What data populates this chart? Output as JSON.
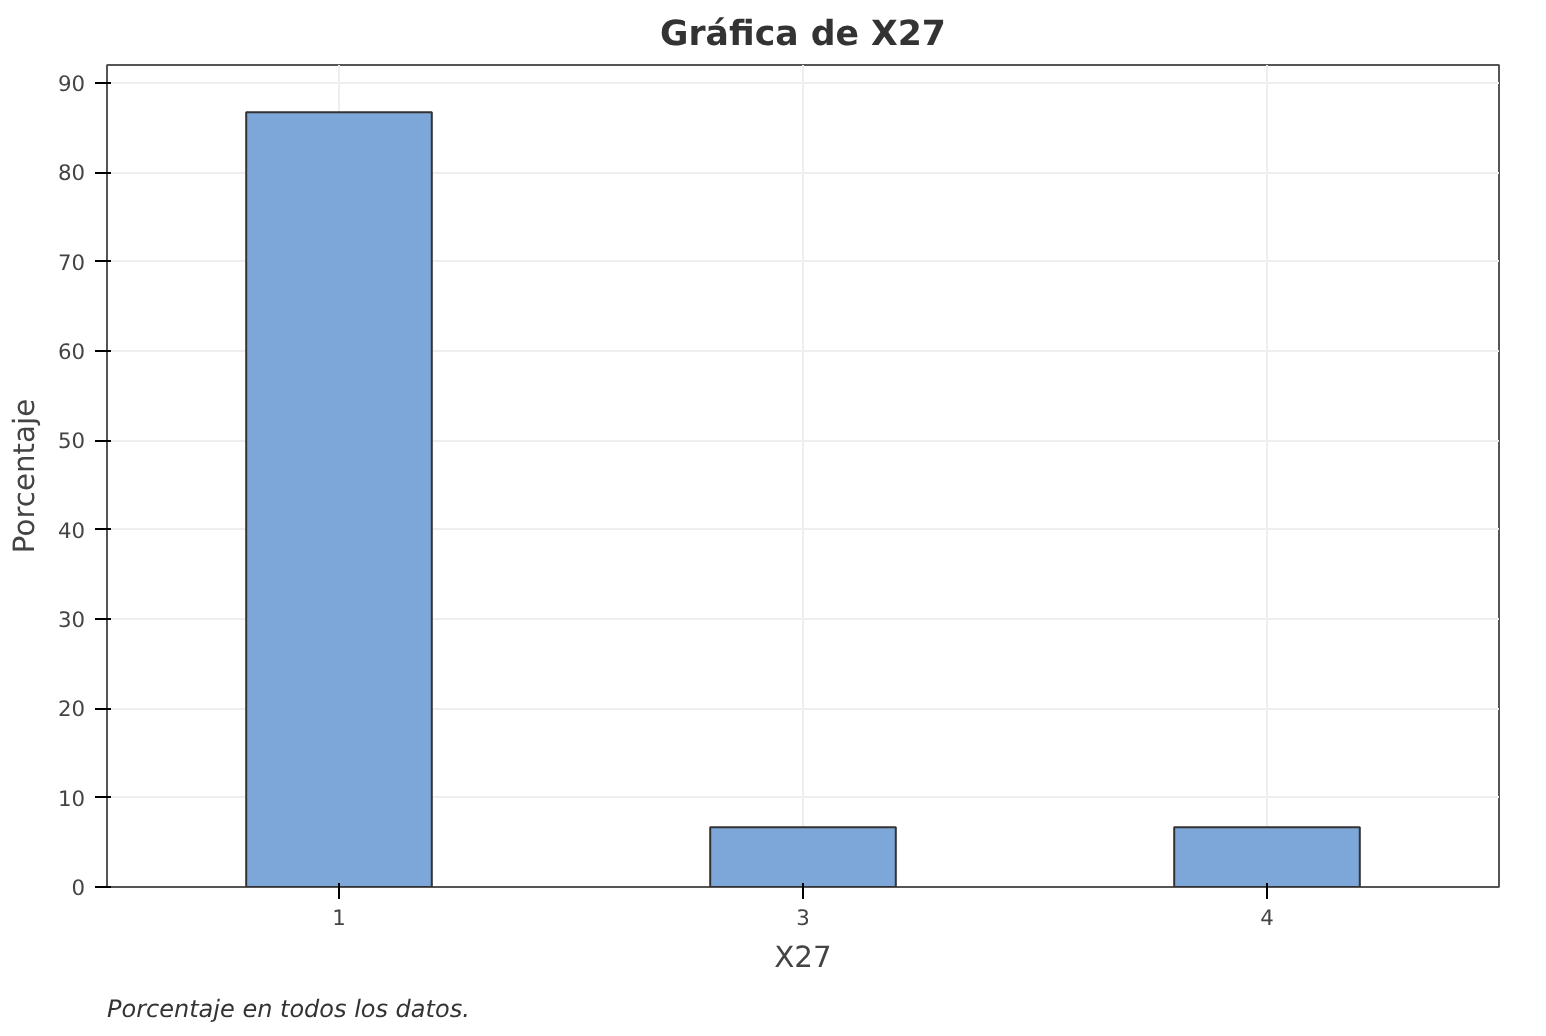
{
  "chart_data": {
    "type": "bar",
    "title": "Gráfica de X27",
    "xlabel": "X27",
    "ylabel": "Porcentaje",
    "categories": [
      "1",
      "3",
      "4"
    ],
    "values": [
      86.7,
      6.7,
      6.7
    ],
    "color": "#7da7d9",
    "ylim": [
      0,
      92
    ],
    "yticks": [
      0,
      10,
      20,
      30,
      40,
      50,
      60,
      70,
      80,
      90
    ],
    "grid": true,
    "annotations": [
      "Porcentaje en todos los datos."
    ]
  }
}
